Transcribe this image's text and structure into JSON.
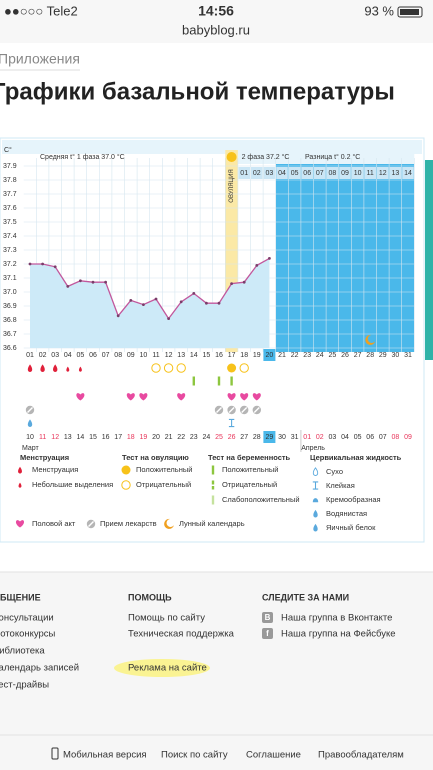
{
  "status_bar": {
    "carrier": "●●○○○ Tele2",
    "time": "14:56",
    "battery": "93 %"
  },
  "url": "babyblog.ru",
  "breadcrumb": "Приложения",
  "title": "Графики базальной температуры",
  "chart_data": {
    "type": "line",
    "y_unit": "C°",
    "phase1_text": "Средняя t° 1 фаза 37.0 °С",
    "phase2_text": "2 фаза 37.2 °С",
    "difference_text": "Разница t° 0.2 °С",
    "ovulation_label": "ОВУЛЯЦИЯ",
    "ovulation_day": 17,
    "today_day": 20,
    "categories": [
      "01",
      "02",
      "03",
      "04",
      "05",
      "06",
      "07",
      "08",
      "09",
      "10",
      "11",
      "12",
      "13",
      "14",
      "15",
      "16",
      "17",
      "18",
      "19",
      "20",
      "21",
      "22",
      "23",
      "24",
      "25",
      "26",
      "27",
      "28",
      "29",
      "30",
      "31"
    ],
    "values": [
      37.2,
      37.2,
      37.18,
      37.04,
      37.08,
      37.07,
      37.07,
      36.83,
      36.94,
      36.91,
      36.95,
      36.81,
      36.93,
      36.99,
      36.92,
      36.92,
      37.06,
      37.07,
      37.19,
      37.24,
      null,
      null,
      null,
      null,
      null,
      null,
      null,
      null,
      null,
      null,
      null
    ],
    "color": "#c2579c",
    "ylim": [
      36.6,
      37.9
    ],
    "yticks": [
      36.6,
      36.7,
      36.8,
      36.9,
      {
        "value": 37,
        "label": "37.0"
      },
      37.1,
      37.2,
      37.3,
      37.4,
      37.5,
      37.6,
      37.7,
      37.8,
      37.9
    ],
    "grid": true,
    "phase2_days": [
      "01",
      "02",
      "03",
      "04",
      "05",
      "06",
      "07",
      "08",
      "09",
      "10",
      "11",
      "12",
      "13",
      "14"
    ],
    "calendar_dates": [
      "10",
      "11",
      "12",
      "13",
      "14",
      "15",
      "16",
      "17",
      "18",
      "19",
      "20",
      "21",
      "22",
      "23",
      "24",
      "25",
      "26",
      "27",
      "28",
      "29",
      "30",
      "31",
      "01",
      "02",
      "03",
      "04",
      "05",
      "06",
      "07",
      "08",
      "09"
    ],
    "weekend_indexes": [
      1,
      2,
      8,
      9,
      15,
      16,
      22,
      23,
      29,
      30
    ],
    "weekend_color": "#e8355a",
    "months": [
      "Март",
      "Апрель"
    ],
    "symbols": {
      "menstruation": [
        1,
        2,
        3
      ],
      "spotting": [
        4,
        5
      ],
      "ovulation_negative": [
        11,
        12,
        13,
        18
      ],
      "ovulation_positive": [
        17
      ],
      "pregnancy_positive": [
        14,
        16,
        17
      ],
      "intercourse": [
        5,
        9,
        10,
        13,
        17,
        18,
        19
      ],
      "medication": [
        1,
        16,
        17,
        18,
        19
      ],
      "cervical_watery": [
        1
      ],
      "cervical_sticky": [
        17
      ],
      "lunar": [
        28
      ]
    },
    "legend": [
      {
        "title": "Менструация",
        "items": [
          "Менструация",
          "Небольшие выделения"
        ]
      },
      {
        "title": "Тест на овуляцию",
        "items": [
          "Положительный",
          "Отрицательный"
        ]
      },
      {
        "title": "Тест на беременность",
        "items": [
          "Положительный",
          "Отрицательный",
          "Слабоположительный"
        ]
      },
      {
        "title": "Цервикальная жидкость",
        "items": [
          "Сухо",
          "Клейкая",
          "Кремообразная",
          "Водянистая",
          "Яичный белок"
        ]
      },
      {
        "title": null,
        "items": [
          "Половой акт",
          "Прием лекарств",
          "Лунный календарь"
        ]
      }
    ]
  },
  "footer": {
    "columns": [
      {
        "title": "ОБЩЕНИЕ",
        "links": [
          "Консультации",
          "Фотоконкурсы",
          "Библиотека",
          "Календарь записей",
          "Тест-драйвы"
        ]
      },
      {
        "title": "ПОМОЩЬ",
        "links": [
          "Помощь по сайту",
          "Техническая поддержка",
          "Реклама на сайте"
        ]
      },
      {
        "title": "СЛЕДИТЕ ЗА НАМИ",
        "links": [
          "Наша группа в Вконтакте",
          "Наша группа на Фейсбуке"
        ],
        "icons": [
          "B",
          "f"
        ]
      }
    ],
    "bottom_links": [
      "Мобильная версия",
      "Поиск по сайту",
      "Соглашение",
      "Правообладателям"
    ]
  }
}
